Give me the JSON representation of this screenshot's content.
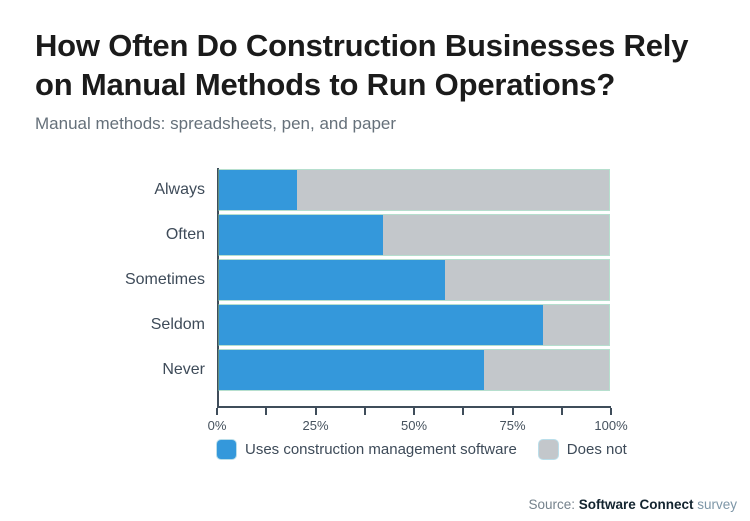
{
  "title": {
    "line1": "How Often Do Construction Businesses Rely",
    "line2": "on Manual Methods to Run Operations?"
  },
  "subtitle": "Manual methods: spreadsheets, pen, and paper",
  "chart_data": {
    "type": "bar",
    "orientation": "horizontal",
    "stacked": true,
    "categories": [
      "Always",
      "Often",
      "Sometimes",
      "Seldom",
      "Never"
    ],
    "series": [
      {
        "name": "Uses construction management software",
        "color": "#3498db",
        "values": [
          20,
          42,
          58,
          83,
          68
        ]
      },
      {
        "name": "Does not",
        "color": "#c3c7cb",
        "values": [
          80,
          58,
          42,
          17,
          32
        ]
      }
    ],
    "xlim": [
      0,
      100
    ],
    "x_tick_labels": [
      "0%",
      "25%",
      "50%",
      "75%",
      "100%"
    ],
    "minor_tick_interval_pct": 12.5,
    "legend_position": "bottom",
    "grid": false
  },
  "legend": {
    "items": [
      {
        "label": "Uses construction management software",
        "color": "#3498db"
      },
      {
        "label": "Does not",
        "color": "#c3c7cb"
      }
    ]
  },
  "footer": {
    "source_prefix": "Source: ",
    "source_name": "Software Connect",
    "source_suffix": " survey"
  },
  "colors": {
    "bar_blue": "#3498db",
    "bar_gray": "#c3c7cb",
    "axis": "#3f4d5a",
    "title_text": "#1b1b1b",
    "subtitle_text": "#65707a",
    "label_text": "#3e4b59"
  }
}
